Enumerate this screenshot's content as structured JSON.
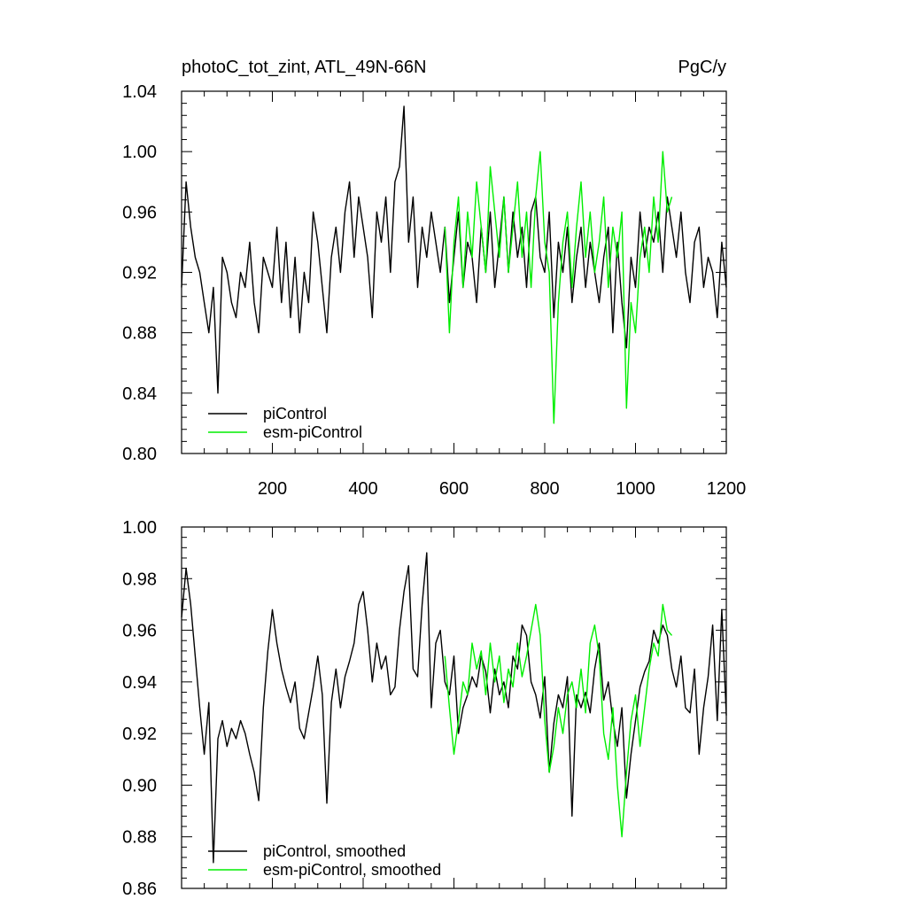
{
  "colors": {
    "piControl": "#000000",
    "esm_piControl": "#00ee00",
    "frame": "#000000",
    "background": "#ffffff"
  },
  "chart_data": [
    {
      "type": "line",
      "title_left": "photoC_tot_zint, ATL_49N-66N",
      "title_right": "PgC/y",
      "xlabel": "",
      "ylabel": "",
      "xlim": [
        0,
        1200
      ],
      "ylim": [
        0.8,
        1.04
      ],
      "x_ticks": [
        200,
        400,
        600,
        800,
        1000,
        1200
      ],
      "x_tick_labels": [
        "200",
        "400",
        "600",
        "800",
        "1000",
        "1200"
      ],
      "y_ticks": [
        0.8,
        0.84,
        0.88,
        0.92,
        0.96,
        1.0,
        1.04
      ],
      "y_tick_labels": [
        "0.80",
        "0.84",
        "0.88",
        "0.92",
        "0.96",
        "1.00",
        "1.04"
      ],
      "legend_position": "bottom-left",
      "grid": false,
      "series": [
        {
          "name": "piControl",
          "color": "#000000",
          "x": [
            0,
            10,
            20,
            30,
            40,
            50,
            60,
            70,
            80,
            90,
            100,
            110,
            120,
            130,
            140,
            150,
            160,
            170,
            180,
            190,
            200,
            210,
            220,
            230,
            240,
            250,
            260,
            270,
            280,
            290,
            300,
            310,
            320,
            330,
            340,
            350,
            360,
            370,
            380,
            390,
            400,
            410,
            420,
            430,
            440,
            450,
            460,
            470,
            480,
            490,
            500,
            510,
            520,
            530,
            540,
            550,
            560,
            570,
            580,
            590,
            600,
            610,
            620,
            630,
            640,
            650,
            660,
            670,
            680,
            690,
            700,
            710,
            720,
            730,
            740,
            750,
            760,
            770,
            780,
            790,
            800,
            810,
            820,
            830,
            840,
            850,
            860,
            870,
            880,
            890,
            900,
            910,
            920,
            930,
            940,
            950,
            960,
            970,
            980,
            990,
            1000,
            1010,
            1020,
            1030,
            1040,
            1050,
            1060,
            1070,
            1080,
            1090,
            1100,
            1110,
            1120,
            1130,
            1140,
            1150,
            1160,
            1170,
            1180,
            1190,
            1200
          ],
          "values": [
            0.91,
            0.98,
            0.95,
            0.93,
            0.92,
            0.9,
            0.88,
            0.91,
            0.84,
            0.93,
            0.92,
            0.9,
            0.89,
            0.92,
            0.91,
            0.94,
            0.9,
            0.88,
            0.93,
            0.92,
            0.91,
            0.95,
            0.9,
            0.94,
            0.89,
            0.93,
            0.88,
            0.92,
            0.9,
            0.96,
            0.94,
            0.91,
            0.88,
            0.93,
            0.95,
            0.92,
            0.96,
            0.98,
            0.93,
            0.97,
            0.95,
            0.93,
            0.89,
            0.96,
            0.94,
            0.97,
            0.92,
            0.98,
            0.99,
            1.03,
            0.94,
            0.97,
            0.91,
            0.95,
            0.93,
            0.96,
            0.94,
            0.92,
            0.95,
            0.9,
            0.93,
            0.96,
            0.91,
            0.94,
            0.93,
            0.9,
            0.95,
            0.92,
            0.96,
            0.91,
            0.94,
            0.97,
            0.92,
            0.96,
            0.93,
            0.95,
            0.91,
            0.96,
            0.97,
            0.93,
            0.92,
            0.96,
            0.89,
            0.94,
            0.92,
            0.95,
            0.9,
            0.93,
            0.95,
            0.91,
            0.94,
            0.92,
            0.9,
            0.93,
            0.95,
            0.88,
            0.94,
            0.9,
            0.87,
            0.93,
            0.91,
            0.96,
            0.93,
            0.95,
            0.94,
            0.96,
            0.92,
            0.97,
            0.95,
            0.93,
            0.96,
            0.92,
            0.9,
            0.94,
            0.95,
            0.91,
            0.93,
            0.92,
            0.89,
            0.94,
            0.91
          ]
        },
        {
          "name": "esm-piControl",
          "color": "#00ee00",
          "x": [
            580,
            590,
            600,
            610,
            620,
            630,
            640,
            650,
            660,
            670,
            680,
            690,
            700,
            710,
            720,
            730,
            740,
            750,
            760,
            770,
            780,
            790,
            800,
            810,
            820,
            830,
            840,
            850,
            860,
            870,
            880,
            890,
            900,
            910,
            920,
            930,
            940,
            950,
            960,
            970,
            980,
            990,
            1000,
            1010,
            1020,
            1030,
            1040,
            1050,
            1060,
            1070,
            1080
          ],
          "values": [
            0.95,
            0.88,
            0.94,
            0.97,
            0.91,
            0.96,
            0.93,
            0.98,
            0.95,
            0.92,
            0.99,
            0.96,
            0.93,
            0.97,
            0.92,
            0.95,
            0.98,
            0.93,
            0.96,
            0.91,
            0.97,
            1.0,
            0.94,
            0.92,
            0.82,
            0.9,
            0.94,
            0.96,
            0.91,
            0.95,
            0.98,
            0.93,
            0.96,
            0.92,
            0.94,
            0.97,
            0.91,
            0.95,
            0.93,
            0.96,
            0.83,
            0.9,
            0.88,
            0.93,
            0.95,
            0.92,
            0.97,
            0.94,
            1.0,
            0.96,
            0.97
          ]
        }
      ]
    },
    {
      "type": "line",
      "title_left": "",
      "title_right": "",
      "xlabel": "",
      "ylabel": "",
      "xlim": [
        0,
        1200
      ],
      "ylim": [
        0.86,
        1.0
      ],
      "x_ticks": [
        200,
        400,
        600,
        800,
        1000,
        1200
      ],
      "x_tick_labels": [],
      "y_ticks": [
        0.86,
        0.88,
        0.9,
        0.92,
        0.94,
        0.96,
        0.98,
        1.0
      ],
      "y_tick_labels": [
        "0.86",
        "0.88",
        "0.90",
        "0.92",
        "0.94",
        "0.96",
        "0.98",
        "1.00"
      ],
      "legend_position": "bottom-left",
      "grid": false,
      "series": [
        {
          "name": "piControl, smoothed",
          "color": "#000000",
          "x": [
            0,
            10,
            20,
            30,
            40,
            50,
            60,
            70,
            80,
            90,
            100,
            110,
            120,
            130,
            140,
            150,
            160,
            170,
            180,
            190,
            200,
            210,
            220,
            230,
            240,
            250,
            260,
            270,
            280,
            290,
            300,
            310,
            320,
            330,
            340,
            350,
            360,
            370,
            380,
            390,
            400,
            410,
            420,
            430,
            440,
            450,
            460,
            470,
            480,
            490,
            500,
            510,
            520,
            530,
            540,
            550,
            560,
            570,
            580,
            590,
            600,
            610,
            620,
            630,
            640,
            650,
            660,
            670,
            680,
            690,
            700,
            710,
            720,
            730,
            740,
            750,
            760,
            770,
            780,
            790,
            800,
            810,
            820,
            830,
            840,
            850,
            860,
            870,
            880,
            890,
            900,
            910,
            920,
            930,
            940,
            950,
            960,
            970,
            980,
            990,
            1000,
            1010,
            1020,
            1030,
            1040,
            1050,
            1060,
            1070,
            1080,
            1090,
            1100,
            1110,
            1120,
            1130,
            1140,
            1150,
            1160,
            1170,
            1180,
            1190,
            1200
          ],
          "values": [
            0.965,
            0.984,
            0.97,
            0.95,
            0.93,
            0.912,
            0.932,
            0.87,
            0.918,
            0.925,
            0.915,
            0.922,
            0.918,
            0.925,
            0.92,
            0.912,
            0.905,
            0.894,
            0.93,
            0.952,
            0.968,
            0.955,
            0.945,
            0.938,
            0.932,
            0.94,
            0.922,
            0.918,
            0.928,
            0.938,
            0.95,
            0.935,
            0.893,
            0.932,
            0.945,
            0.93,
            0.942,
            0.948,
            0.955,
            0.97,
            0.975,
            0.96,
            0.94,
            0.955,
            0.945,
            0.95,
            0.935,
            0.938,
            0.96,
            0.975,
            0.985,
            0.945,
            0.942,
            0.97,
            0.99,
            0.93,
            0.955,
            0.96,
            0.94,
            0.935,
            0.95,
            0.92,
            0.93,
            0.935,
            0.942,
            0.938,
            0.95,
            0.944,
            0.928,
            0.945,
            0.935,
            0.94,
            0.93,
            0.95,
            0.945,
            0.962,
            0.958,
            0.94,
            0.935,
            0.926,
            0.942,
            0.905,
            0.924,
            0.935,
            0.93,
            0.942,
            0.888,
            0.935,
            0.93,
            0.936,
            0.928,
            0.945,
            0.955,
            0.933,
            0.94,
            0.925,
            0.915,
            0.93,
            0.895,
            0.912,
            0.925,
            0.938,
            0.944,
            0.948,
            0.96,
            0.955,
            0.962,
            0.958,
            0.945,
            0.938,
            0.95,
            0.93,
            0.928,
            0.945,
            0.912,
            0.93,
            0.942,
            0.962,
            0.925,
            0.968,
            0.927
          ]
        },
        {
          "name": "esm-piControl, smoothed",
          "color": "#00ee00",
          "x": [
            580,
            590,
            600,
            610,
            620,
            630,
            640,
            650,
            660,
            670,
            680,
            690,
            700,
            710,
            720,
            730,
            740,
            750,
            760,
            770,
            780,
            790,
            800,
            810,
            820,
            830,
            840,
            850,
            860,
            870,
            880,
            890,
            900,
            910,
            920,
            930,
            940,
            950,
            960,
            970,
            980,
            990,
            1000,
            1010,
            1020,
            1030,
            1040,
            1050,
            1060,
            1070,
            1080
          ],
          "values": [
            0.95,
            0.93,
            0.912,
            0.925,
            0.94,
            0.935,
            0.955,
            0.945,
            0.952,
            0.935,
            0.955,
            0.94,
            0.95,
            0.932,
            0.945,
            0.938,
            0.955,
            0.942,
            0.95,
            0.96,
            0.97,
            0.958,
            0.925,
            0.905,
            0.915,
            0.93,
            0.92,
            0.935,
            0.94,
            0.93,
            0.945,
            0.928,
            0.955,
            0.962,
            0.95,
            0.92,
            0.91,
            0.93,
            0.9,
            0.88,
            0.905,
            0.925,
            0.935,
            0.915,
            0.93,
            0.945,
            0.955,
            0.95,
            0.97,
            0.96,
            0.958
          ]
        }
      ]
    }
  ]
}
